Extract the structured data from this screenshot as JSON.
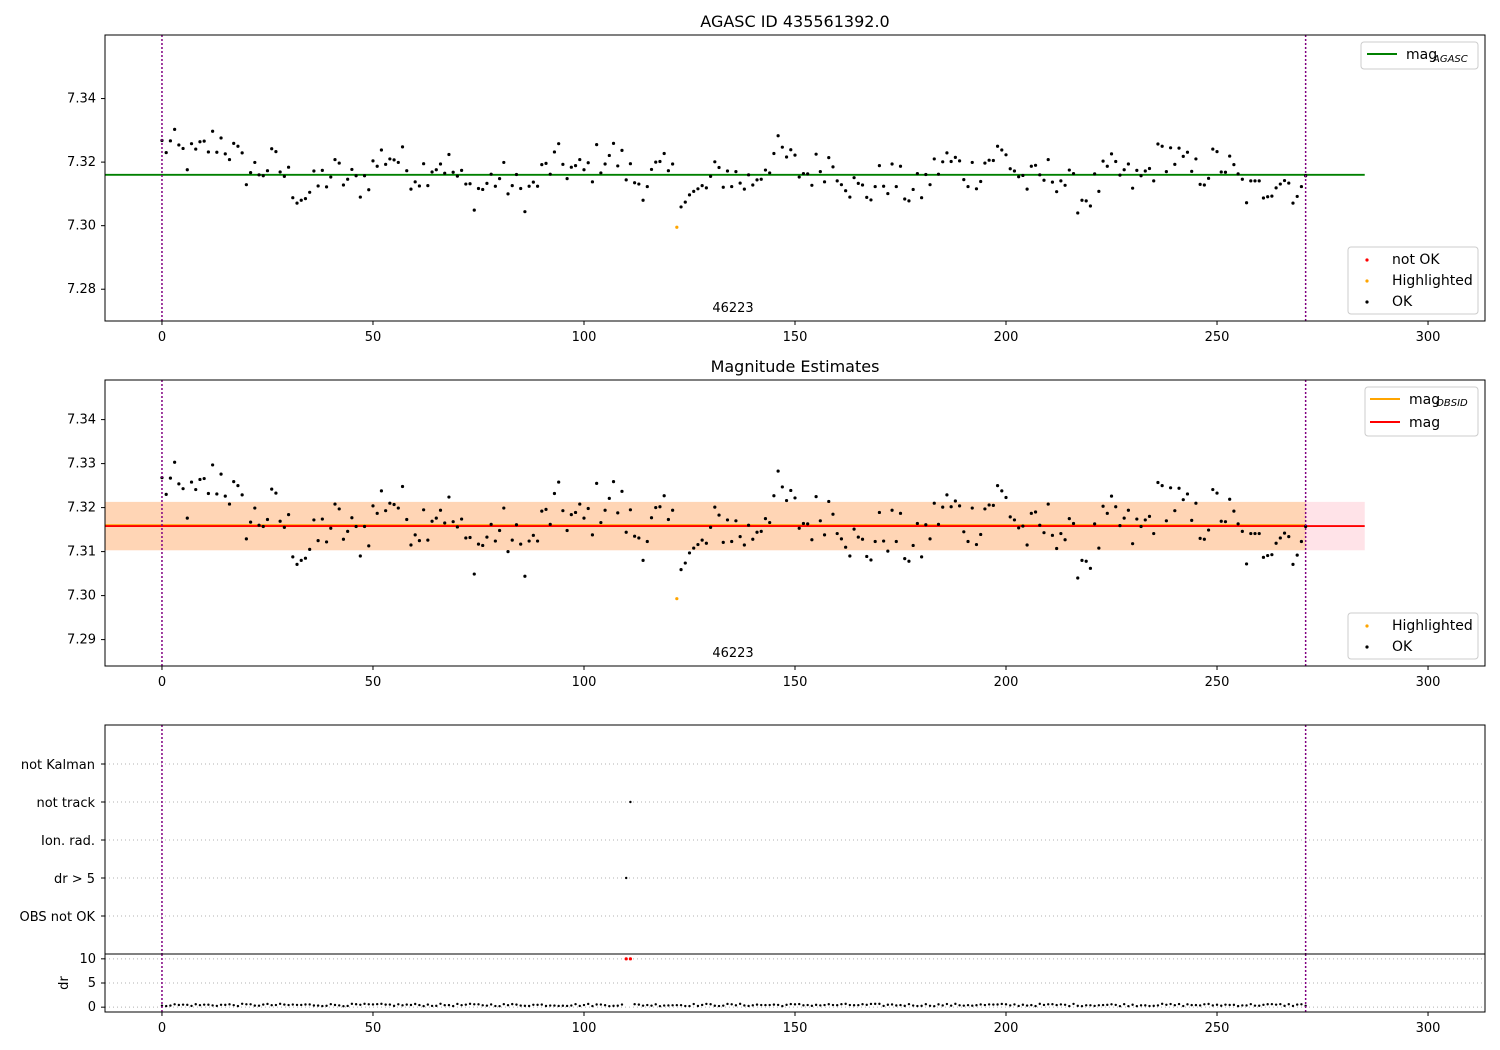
{
  "chart_data": [
    {
      "type": "scatter",
      "title": "AGASC ID 435561392.0",
      "xlim": [
        -13.5,
        313.5
      ],
      "ylim": [
        7.27,
        7.36
      ],
      "xticks": [
        0,
        50,
        100,
        150,
        200,
        250,
        300
      ],
      "yticks": [
        7.28,
        7.3,
        7.32,
        7.34
      ],
      "ytick_labels": [
        "7.28",
        "7.30",
        "7.32",
        "7.34"
      ],
      "annotation": {
        "text": "46223",
        "x": 135,
        "y": 7.2745
      },
      "vlines": [
        0,
        271
      ],
      "lines": [
        {
          "name": "mag",
          "subscript": "AGASC",
          "color": "#008000",
          "y": 7.316,
          "x0": -13.5,
          "x1": 285
        }
      ],
      "legend_lines_loc": "upper right",
      "legend_points": [
        {
          "label": "not OK",
          "color": "#ff0000"
        },
        {
          "label": "Highlighted",
          "color": "#ffa500"
        },
        {
          "label": "OK",
          "color": "#000000"
        }
      ],
      "legend_points_loc": "lower right",
      "highlight": {
        "x": 122,
        "y": 7.2995
      },
      "series_base": 0
    },
    {
      "type": "scatter",
      "title": "Magnitude Estimates",
      "xlim": [
        -13.5,
        313.5
      ],
      "ylim": [
        7.284,
        7.349
      ],
      "xticks": [
        0,
        50,
        100,
        150,
        200,
        250,
        300
      ],
      "yticks": [
        7.29,
        7.3,
        7.31,
        7.32,
        7.33,
        7.34
      ],
      "ytick_labels": [
        "7.29",
        "7.30",
        "7.31",
        "7.32",
        "7.33",
        "7.34"
      ],
      "annotation": {
        "text": "46223",
        "x": 135,
        "y": 7.286
      },
      "vlines": [
        0,
        271
      ],
      "bands": [
        {
          "y0": 7.3103,
          "y1": 7.3213,
          "x0": -13.5,
          "x1": 285,
          "color": "#ffc0cb",
          "opacity": 0.45
        },
        {
          "y0": 7.3103,
          "y1": 7.3213,
          "x0": -13.5,
          "x1": 271,
          "color": "#ffa500",
          "opacity": 0.22
        }
      ],
      "lines": [
        {
          "name": "mag",
          "subscript": "OBSID",
          "color": "#ffa500",
          "y": 7.316,
          "x0": -13.5,
          "x1": 271
        },
        {
          "name": "mag",
          "subscript": "",
          "color": "#ff0000",
          "y": 7.3158,
          "x0": -13.5,
          "x1": 285
        }
      ],
      "legend_lines_loc": "upper right",
      "legend_points": [
        {
          "label": "Highlighted",
          "color": "#ffa500"
        },
        {
          "label": "OK",
          "color": "#000000"
        }
      ],
      "legend_points_loc": "lower right",
      "highlight": {
        "x": 122,
        "y": 7.2993
      },
      "series_base": 0
    },
    {
      "type": "scatter",
      "title": "",
      "categories": [
        "not Kalman",
        "not track",
        "Ion. rad.",
        "dr > 5",
        "OBS not OK"
      ],
      "flag_points": [
        {
          "category": "not track",
          "x": 111
        },
        {
          "category": "dr > 5",
          "x": 110
        }
      ],
      "vlines": [
        0,
        271
      ],
      "xlim": [
        -13.5,
        313.5
      ]
    },
    {
      "type": "scatter",
      "ylabel": "dr",
      "xlim": [
        -13.5,
        313.5
      ],
      "ylim": [
        -1,
        11
      ],
      "xticks": [
        0,
        50,
        100,
        150,
        200,
        250,
        300
      ],
      "yticks": [
        0,
        5,
        10
      ],
      "ytick_labels": [
        "0",
        "5",
        "10"
      ],
      "flagged_points": [
        {
          "x": 110,
          "y": 10
        },
        {
          "x": 111,
          "y": 10
        }
      ],
      "vlines": [
        0,
        271
      ]
    }
  ]
}
